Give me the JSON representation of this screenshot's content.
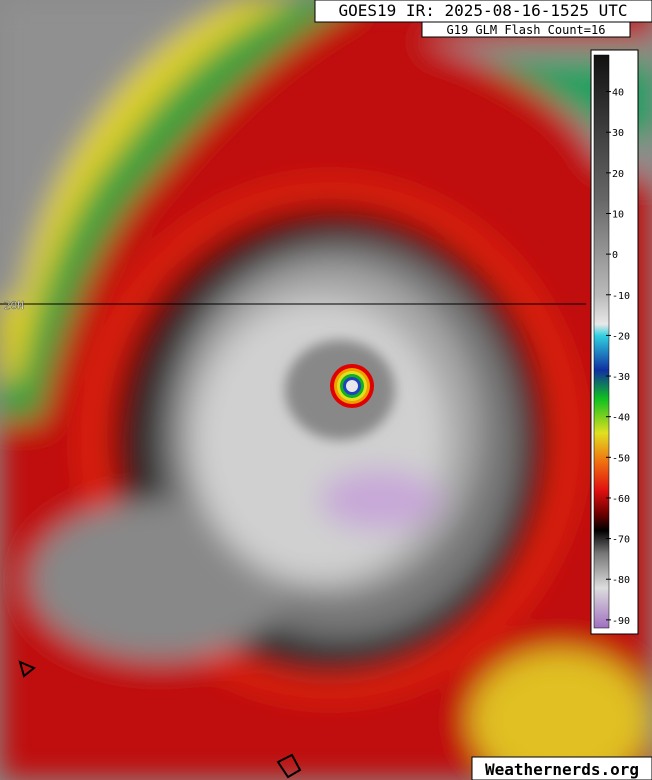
{
  "header": {
    "title": "GOES19 IR: 2025-08-16-1525 UTC",
    "subtitle": "G19 GLM Flash Count=16"
  },
  "colorbar": {
    "range": [
      49,
      -92
    ],
    "ticks": [
      40,
      30,
      20,
      10,
      0,
      -10,
      -20,
      -30,
      -40,
      -50,
      -60,
      -70,
      -80,
      -90
    ]
  },
  "latitude_label": "20N",
  "credit": "Weathernerds.org"
}
